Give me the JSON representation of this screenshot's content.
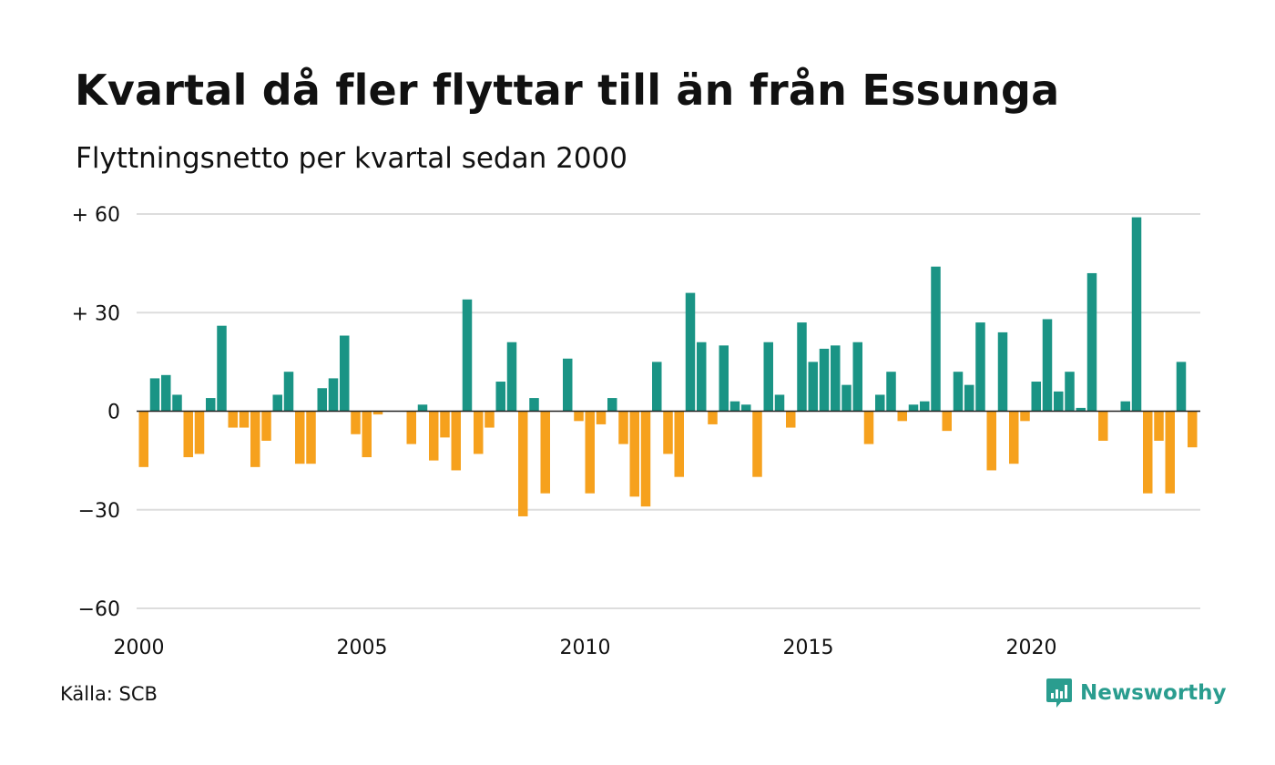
{
  "header": {
    "title": "Kvartal då fler flyttar till än från Essunga",
    "subtitle": "Flyttningsnetto per kvartal sedan 2000"
  },
  "footer": {
    "source": "Källa: SCB",
    "brand": "Newsworthy",
    "brand_icon": "bar-chart-speech-bubble-icon"
  },
  "colors": {
    "positive": "#1a9485",
    "negative": "#f6a11d",
    "grid": "#dddddd",
    "brand": "#2a9d8f"
  },
  "chart_data": {
    "type": "bar",
    "ylim": [
      -60,
      60
    ],
    "y_ticks": [
      60,
      30,
      0,
      -30,
      -60
    ],
    "y_tick_labels": [
      "+ 60",
      "+ 30",
      "0",
      "−30",
      "−60"
    ],
    "x_tick_labels": [
      "2000",
      "2005",
      "2010",
      "2015",
      "2020"
    ],
    "x_tick_years": [
      2000,
      2005,
      2010,
      2015,
      2020
    ],
    "start_year": 2000,
    "grid": true,
    "categories": [
      "2000 Q1",
      "2000 Q2",
      "2000 Q3",
      "2000 Q4",
      "2001 Q1",
      "2001 Q2",
      "2001 Q3",
      "2001 Q4",
      "2002 Q1",
      "2002 Q2",
      "2002 Q3",
      "2002 Q4",
      "2003 Q1",
      "2003 Q2",
      "2003 Q3",
      "2003 Q4",
      "2004 Q1",
      "2004 Q2",
      "2004 Q3",
      "2004 Q4",
      "2005 Q1",
      "2005 Q2",
      "2005 Q3",
      "2005 Q4",
      "2006 Q1",
      "2006 Q2",
      "2006 Q3",
      "2006 Q4",
      "2007 Q1",
      "2007 Q2",
      "2007 Q3",
      "2007 Q4",
      "2008 Q1",
      "2008 Q2",
      "2008 Q3",
      "2008 Q4",
      "2009 Q1",
      "2009 Q2",
      "2009 Q3",
      "2009 Q4",
      "2010 Q1",
      "2010 Q2",
      "2010 Q3",
      "2010 Q4",
      "2011 Q1",
      "2011 Q2",
      "2011 Q3",
      "2011 Q4",
      "2012 Q1",
      "2012 Q2",
      "2012 Q3",
      "2012 Q4",
      "2013 Q1",
      "2013 Q2",
      "2013 Q3",
      "2013 Q4",
      "2014 Q1",
      "2014 Q2",
      "2014 Q3",
      "2014 Q4",
      "2015 Q1",
      "2015 Q2",
      "2015 Q3",
      "2015 Q4",
      "2016 Q1",
      "2016 Q2",
      "2016 Q3",
      "2016 Q4",
      "2017 Q1",
      "2017 Q2",
      "2017 Q3",
      "2017 Q4",
      "2018 Q1",
      "2018 Q2",
      "2018 Q3",
      "2018 Q4",
      "2019 Q1",
      "2019 Q2",
      "2019 Q3",
      "2019 Q4",
      "2020 Q1",
      "2020 Q2",
      "2020 Q3",
      "2020 Q4",
      "2021 Q1",
      "2021 Q2",
      "2021 Q3",
      "2021 Q4",
      "2022 Q1",
      "2022 Q2",
      "2022 Q3",
      "2022 Q4",
      "2023 Q1",
      "2023 Q2",
      "2023 Q3",
      "2023 Q4"
    ],
    "values": [
      -17,
      10,
      11,
      5,
      -14,
      -13,
      4,
      26,
      -5,
      -5,
      -17,
      -9,
      5,
      12,
      -16,
      -16,
      7,
      10,
      23,
      -7,
      -14,
      -1,
      0,
      0,
      -10,
      2,
      -15,
      -8,
      -18,
      34,
      -13,
      -5,
      9,
      21,
      -32,
      4,
      -25,
      0,
      16,
      -3,
      -25,
      -4,
      4,
      -10,
      -26,
      -29,
      15,
      -13,
      -20,
      36,
      21,
      -4,
      20,
      3,
      2,
      -20,
      21,
      5,
      -5,
      27,
      15,
      19,
      20,
      8,
      21,
      -10,
      5,
      12,
      -3,
      2,
      3,
      44,
      -6,
      12,
      8,
      27,
      -18,
      24,
      -16,
      -3,
      9,
      28,
      6,
      12,
      1,
      42,
      -9,
      0,
      3,
      59,
      -25,
      -9,
      -25,
      15,
      -11,
      0
    ]
  }
}
